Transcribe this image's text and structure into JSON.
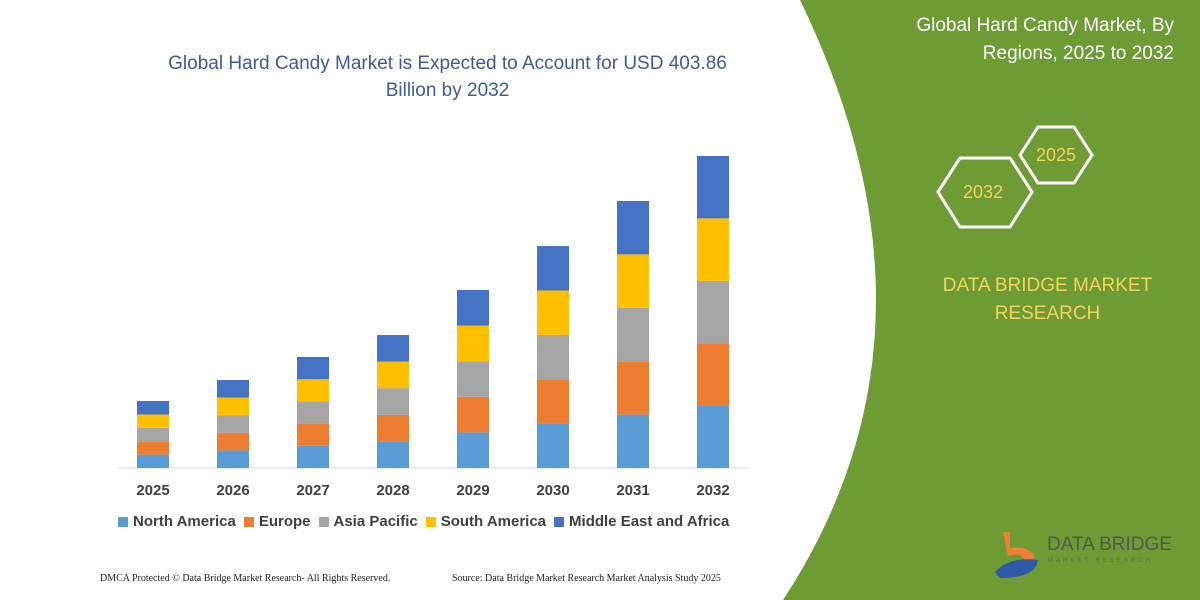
{
  "colors": {
    "green_panel": "#6e9b34",
    "title": "#3b5b9a",
    "brand_text": "#f2d45a"
  },
  "right_panel": {
    "title": "Global Hard Candy Market, By Regions, 2025 to 2032",
    "hex_years": [
      "2025",
      "2032"
    ],
    "brand": "DATA BRIDGE MARKET RESEARCH",
    "logo_text": "DATA BRIDGE",
    "logo_subtext": "MARKET RESEARCH"
  },
  "footer": {
    "left": "DMCA Protected © Data Bridge Market Research-  All Rights Reserved.",
    "right": "Source: Data Bridge Market Research  Market Analysis Study 2025"
  },
  "chart_data": {
    "type": "bar",
    "stacked": true,
    "title": "Global Hard Candy Market is Expected to Account for USD 403.86 Billion by 2032",
    "xlabel": "",
    "ylabel": "",
    "ylim": [
      0,
      403.86
    ],
    "grid": false,
    "legend_position": "bottom",
    "categories": [
      "2025",
      "2026",
      "2027",
      "2028",
      "2029",
      "2030",
      "2031",
      "2032"
    ],
    "series": [
      {
        "name": "North America",
        "color": "#5b9bd5",
        "values": [
          17.3,
          22.8,
          28.7,
          34.4,
          46.1,
          57.5,
          69.1,
          80.8
        ]
      },
      {
        "name": "Europe",
        "color": "#ed7d31",
        "values": [
          17.3,
          22.8,
          28.7,
          34.4,
          46.1,
          57.4,
          69.1,
          80.8
        ]
      },
      {
        "name": "Asia Pacific",
        "color": "#a5a5a5",
        "values": [
          17.4,
          22.8,
          28.8,
          34.5,
          46.0,
          57.5,
          69.2,
          80.7
        ]
      },
      {
        "name": "South America",
        "color": "#ffc000",
        "values": [
          17.3,
          22.7,
          28.7,
          34.4,
          46.1,
          57.4,
          69.1,
          80.8
        ]
      },
      {
        "name": "Middle East and Africa",
        "color": "#4472c4",
        "values": [
          17.4,
          22.8,
          28.8,
          34.4,
          46.1,
          57.5,
          69.1,
          80.8
        ]
      }
    ]
  }
}
